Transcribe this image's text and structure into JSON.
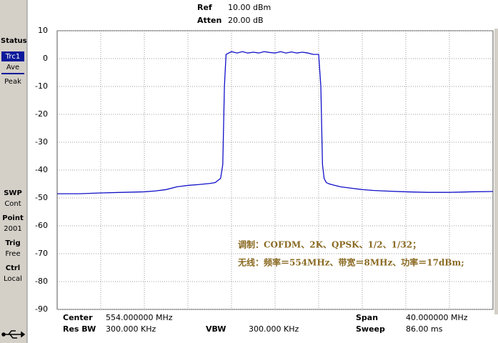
{
  "ui": {
    "ref_label": "Ref",
    "ref_value": "10.00 dBm",
    "atten_label": "Atten",
    "atten_value": "20.00 dB",
    "sidebar": {
      "status": "Status",
      "trc": "Trc1",
      "ave": "Ave",
      "peak": "Peak",
      "swp": "SWP",
      "swp_value": "Cont",
      "point": "Point",
      "point_value": "2001",
      "trig": "Trig",
      "trig_value": "Free",
      "ctrl": "Ctrl",
      "ctrl_value": "Local"
    },
    "footer": {
      "center_label": "Center",
      "center_value": "554.000000 MHz",
      "rbw_label": "Res BW",
      "rbw_value": "300.000 KHz",
      "vbw_label": "VBW",
      "vbw_value": "300.000 KHz",
      "span_label": "Span",
      "span_value": "40.000000 MHz",
      "sweep_label": "Sweep",
      "sweep_value": "86.00 ms"
    }
  },
  "chart_data": {
    "type": "line",
    "annotations": [
      "调制：COFDM、2K、QPSK、1/2、1/32；",
      "无线：频率＝554MHz、带宽＝8MHz、功率＝17dBm;"
    ],
    "x": [
      534,
      536,
      538,
      540,
      542,
      543,
      544,
      545,
      546,
      547,
      548,
      548.5,
      549,
      549.2,
      549.35,
      549.5,
      550,
      550.5,
      551,
      551.5,
      552,
      552.5,
      553,
      553.5,
      554,
      554.5,
      555,
      555.5,
      556,
      556.5,
      557,
      557.5,
      558,
      558.2,
      558.35,
      558.5,
      558.7,
      559,
      559.5,
      560,
      561,
      562,
      563,
      564,
      566,
      568,
      570,
      572,
      574
    ],
    "values": [
      -48.5,
      -48.5,
      -48.2,
      -48,
      -47.8,
      -47.5,
      -47,
      -46,
      -45.5,
      -45.2,
      -44.8,
      -44.5,
      -43,
      -38,
      -10,
      1.5,
      2.5,
      2,
      2.5,
      2,
      2.3,
      2,
      2.5,
      2.2,
      2,
      2.5,
      2,
      2.4,
      2,
      2.3,
      2,
      1.5,
      1.5,
      -10,
      -38,
      -43,
      -44.5,
      -45,
      -45.5,
      -46,
      -46.5,
      -47,
      -47.3,
      -47.5,
      -47.8,
      -48,
      -48,
      -47.8,
      -47.7
    ],
    "color": "#1010c8",
    "xlim": [
      534,
      574
    ],
    "ylim": [
      -90,
      10
    ],
    "yticks": [
      10,
      0,
      -10,
      -20,
      -30,
      -40,
      -50,
      -60,
      -70,
      -80,
      -90
    ],
    "grid": true
  }
}
